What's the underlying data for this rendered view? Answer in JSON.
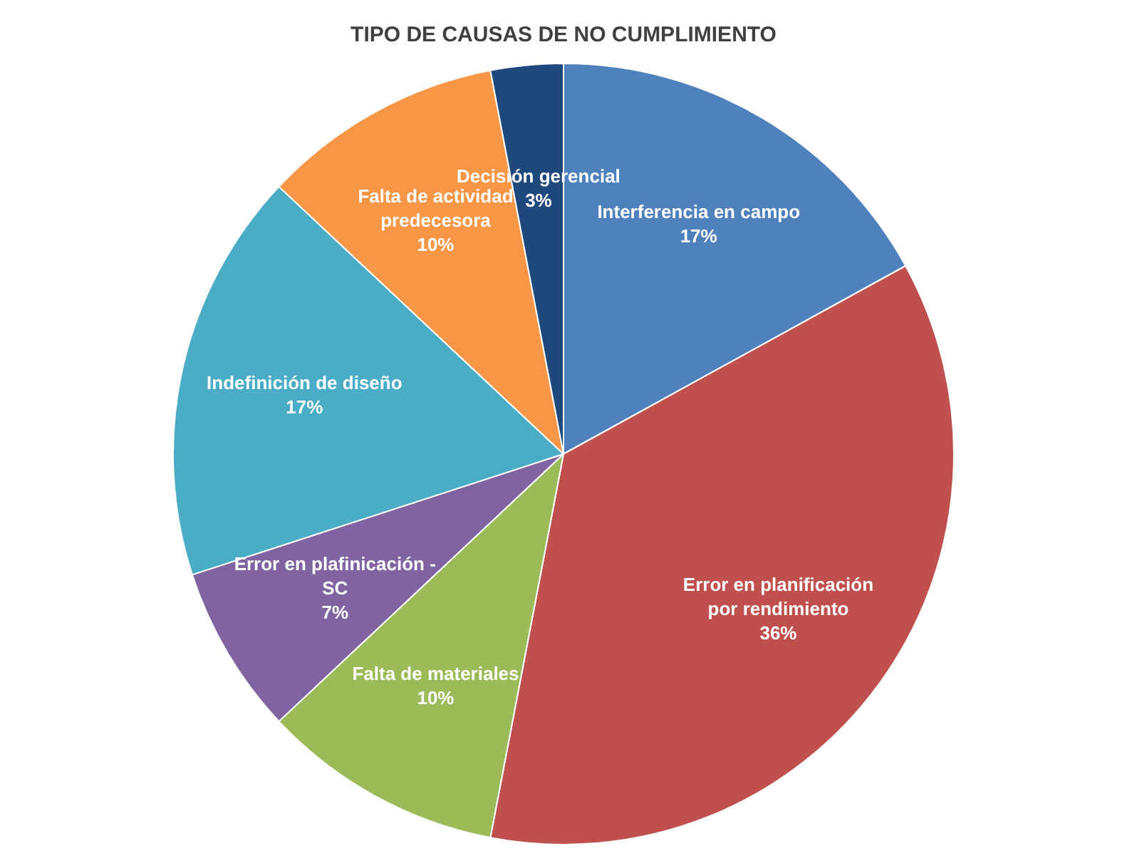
{
  "chart_data": {
    "type": "pie",
    "title": "TIPO DE CAUSAS DE NO CUMPLIMIENTO",
    "categories": [
      "Interferencia en campo",
      "Error en planificación por rendimiento",
      "Falta de materiales",
      "Error en plafinicación - SC",
      "Indefinición de diseño",
      "Falta de actividad predecesora",
      "Decisión gerencial"
    ],
    "values": [
      17,
      36,
      10,
      7,
      17,
      10,
      3
    ],
    "value_labels": [
      "17%",
      "36%",
      "10%",
      "7%",
      "17%",
      "10%",
      "3%"
    ],
    "colors": [
      "#4f81bd",
      "#c0504d",
      "#9bbb59",
      "#8064a2",
      "#4bacc6",
      "#f79646",
      "#1f497d"
    ],
    "legend": false
  }
}
